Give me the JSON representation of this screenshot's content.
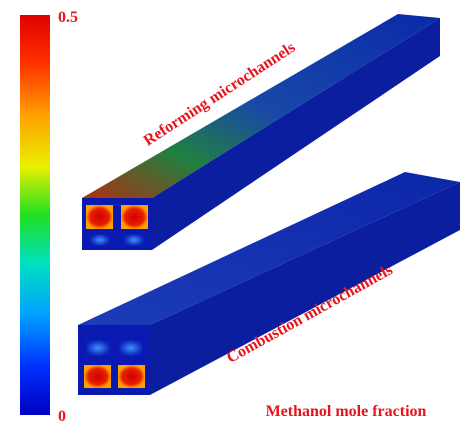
{
  "colorbar": {
    "max_label": "0.5",
    "min_label": "0"
  },
  "labels": {
    "reforming": "Reforming microchannels",
    "combustion": "Combustion microchannels",
    "quantity": "Methanol mole fraction"
  }
}
